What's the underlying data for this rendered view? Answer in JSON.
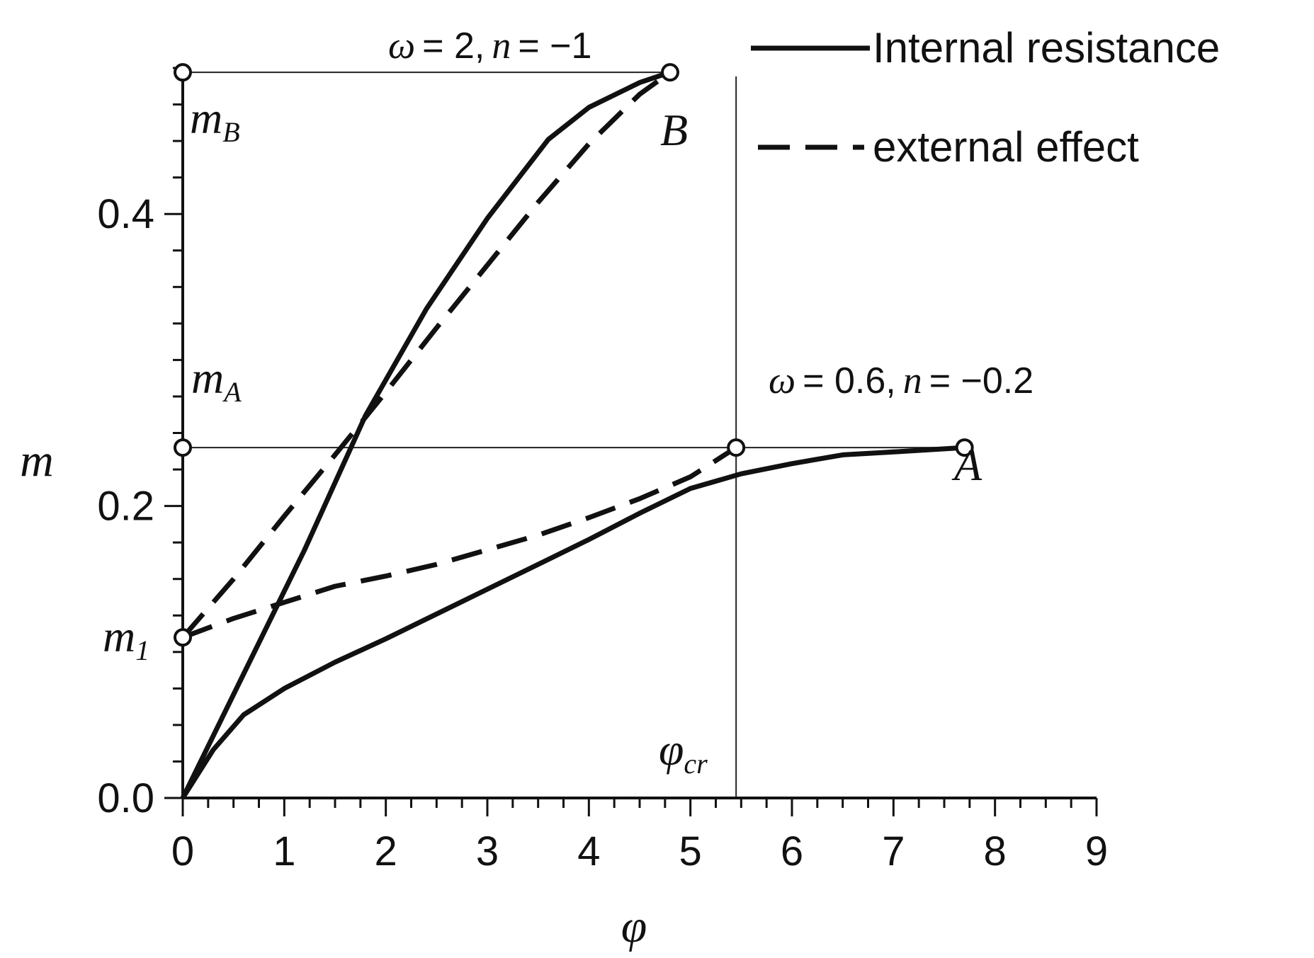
{
  "chart_data": {
    "type": "line",
    "xlabel": "φ",
    "ylabel": "m",
    "xlim": [
      0,
      9
    ],
    "ylim": [
      0,
      0.5
    ],
    "x_ticks": [
      "0",
      "1",
      "2",
      "3",
      "4",
      "5",
      "6",
      "7",
      "8",
      "9"
    ],
    "y_ticks": [
      "0.0",
      "0.2",
      "0.4"
    ],
    "y_tick_values": [
      0,
      0.2,
      0.4
    ],
    "grid": false,
    "legend_position": "top-right",
    "legend": [
      {
        "label": "Internal resistance",
        "style": "solid"
      },
      {
        "label": "external effect",
        "style": "dashed"
      }
    ],
    "series": [
      {
        "style": "solid",
        "group": "ω = 2, n = −1",
        "x": [
          0,
          0.6,
          1.2,
          1.8,
          2.4,
          3.0,
          3.6,
          4.0,
          4.5,
          4.8
        ],
        "y": [
          0,
          0.085,
          0.17,
          0.262,
          0.335,
          0.397,
          0.451,
          0.473,
          0.49,
          0.497
        ]
      },
      {
        "style": "dashed",
        "group": "ω = 2, n = −1",
        "x": [
          0,
          0.5,
          1.0,
          1.5,
          2.0,
          2.5,
          3.0,
          3.5,
          4.0,
          4.5,
          4.8
        ],
        "y": [
          0.11,
          0.15,
          0.193,
          0.235,
          0.278,
          0.322,
          0.365,
          0.408,
          0.448,
          0.482,
          0.497
        ]
      },
      {
        "style": "solid",
        "group": "ω = 0.6, n = −0.2",
        "x": [
          0,
          0.3,
          0.6,
          1.0,
          1.5,
          2.0,
          2.5,
          3.0,
          3.5,
          4.0,
          4.5,
          5.0,
          5.5,
          6.0,
          6.5,
          7.0,
          7.7
        ],
        "y": [
          0,
          0.033,
          0.057,
          0.075,
          0.093,
          0.109,
          0.126,
          0.143,
          0.16,
          0.177,
          0.195,
          0.212,
          0.222,
          0.229,
          0.235,
          0.237,
          0.24
        ]
      },
      {
        "style": "dashed",
        "group": "ω = 0.6, n = −0.2",
        "x": [
          0,
          0.5,
          1.0,
          1.5,
          2.0,
          2.5,
          3.0,
          3.5,
          4.0,
          4.5,
          5.0,
          5.45
        ],
        "y": [
          0.11,
          0.123,
          0.134,
          0.145,
          0.152,
          0.16,
          0.17,
          0.18,
          0.192,
          0.205,
          0.22,
          0.24
        ]
      }
    ],
    "reference_lines": {
      "m_B": 0.497,
      "m_A": 0.24,
      "phi_cr": 5.45
    },
    "markers": [
      {
        "x": 0,
        "y": 0.497
      },
      {
        "x": 4.8,
        "y": 0.497
      },
      {
        "x": 0,
        "y": 0.24
      },
      {
        "x": 5.45,
        "y": 0.24
      },
      {
        "x": 7.7,
        "y": 0.24
      },
      {
        "x": 0,
        "y": 0.11
      }
    ],
    "annotations": {
      "top_curve": {
        "omega": "ω",
        "omega_value": "= 2,",
        "n": "n",
        "n_value": "= −1"
      },
      "bottom_curve": {
        "omega": "ω",
        "omega_value": "= 0.6,",
        "n": "n",
        "n_value": "= −0.2"
      },
      "point_B": "B",
      "point_A": "A",
      "m_B_label": {
        "main": "m",
        "sub": "B"
      },
      "m_A_label": {
        "main": "m",
        "sub": "A"
      },
      "m_1_label": {
        "main": "m",
        "sub": "1"
      },
      "phi_cr_label": {
        "main": "φ",
        "sub": "cr"
      }
    }
  }
}
